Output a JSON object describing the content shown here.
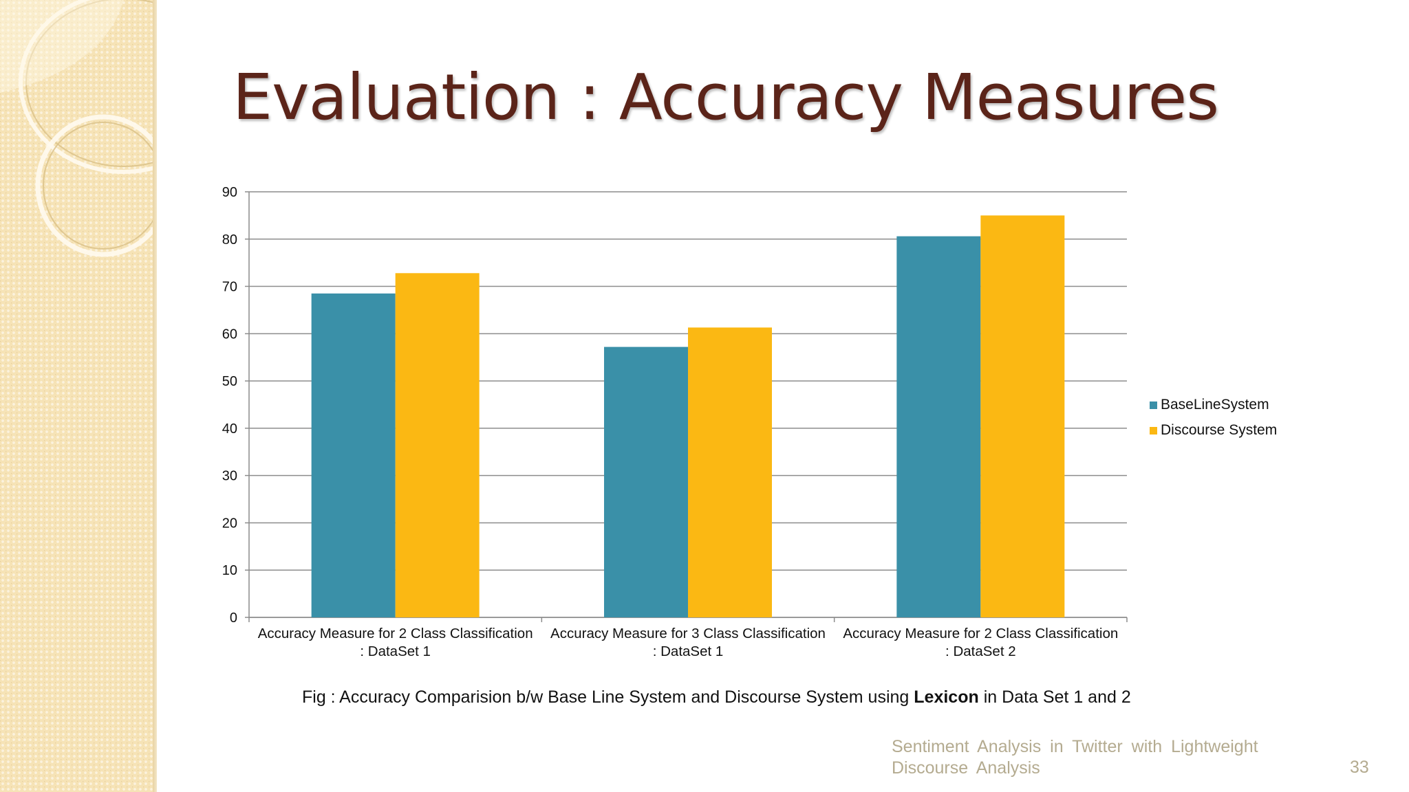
{
  "slide": {
    "title": "Evaluation : Accuracy Measures",
    "caption_prefix": "Fig : Accuracy Comparision b/w Base Line System and Discourse System using ",
    "caption_bold": "Lexicon",
    "caption_suffix": " in Data Set 1 and 2",
    "footer_line1": "Sentiment Analysis in Twitter with Lightweight",
    "footer_line2": "Discourse Analysis",
    "page_number": "33"
  },
  "colors": {
    "title": "#5b2419",
    "baseline": "#3a90a8",
    "discourse": "#fbb813",
    "gridline": "#8c8c8c",
    "footer": "#b4ab90"
  },
  "chart_data": {
    "type": "bar",
    "categories": [
      [
        "Accuracy Measure for 2 Class Classification",
        ": DataSet 1"
      ],
      [
        "Accuracy Measure for 3 Class Classification",
        ": DataSet 1"
      ],
      [
        "Accuracy Measure for 2 Class Classification",
        ": DataSet 2"
      ]
    ],
    "series": [
      {
        "name": "BaseLineSystem",
        "color": "#3a90a8",
        "values": [
          68.5,
          57.2,
          80.6
        ]
      },
      {
        "name": "Discourse System",
        "color": "#fbb813",
        "values": [
          72.8,
          61.3,
          85.0
        ]
      }
    ],
    "ylim": [
      0,
      90
    ],
    "yticks": [
      0,
      10,
      20,
      30,
      40,
      50,
      60,
      70,
      80,
      90
    ],
    "grid": true,
    "legend_position": "right",
    "title": "",
    "xlabel": "",
    "ylabel": ""
  }
}
